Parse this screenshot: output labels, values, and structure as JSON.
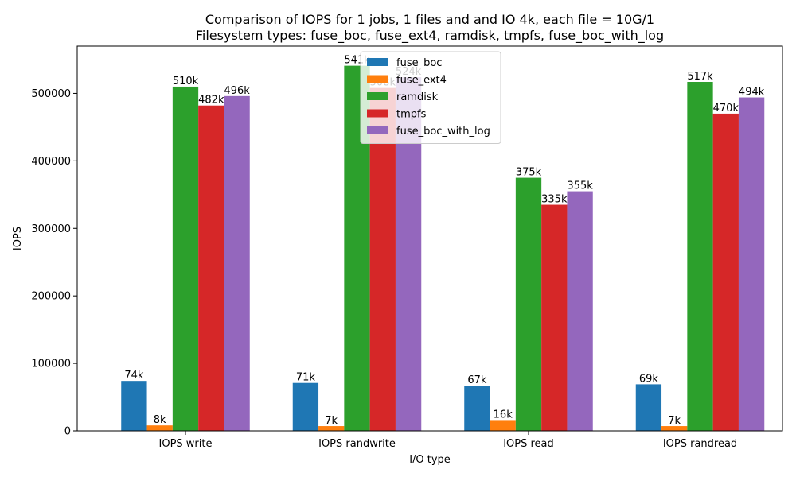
{
  "chart_data": {
    "type": "bar",
    "title": "Comparison of IOPS for 1 jobs, 1 files and  and IO 4k, each file = 10G/1",
    "subtitle": "Filesystem types: fuse_boc, fuse_ext4, ramdisk, tmpfs, fuse_boc_with_log",
    "xlabel": "I/O type",
    "ylabel": "IOPS",
    "categories": [
      "IOPS write",
      "IOPS randwrite",
      "IOPS read",
      "IOPS randread"
    ],
    "ylim": [
      0,
      570000
    ],
    "yticks": [
      "0",
      "100000",
      "200000",
      "300000",
      "400000",
      "500000"
    ],
    "ytick_values": [
      0,
      100000,
      200000,
      300000,
      400000,
      500000
    ],
    "legend_position": "top-center",
    "grid": false,
    "series": [
      {
        "name": "fuse_boc",
        "color": "#1f77b4",
        "values": [
          74000,
          71000,
          67000,
          69000
        ],
        "labels": [
          "74k",
          "71k",
          "67k",
          "69k"
        ]
      },
      {
        "name": "fuse_ext4",
        "color": "#ff7f0e",
        "values": [
          8000,
          7000,
          16000,
          7000
        ],
        "labels": [
          "8k",
          "7k",
          "16k",
          "7k"
        ]
      },
      {
        "name": "ramdisk",
        "color": "#2ca02c",
        "values": [
          510000,
          541000,
          375000,
          517000
        ],
        "labels": [
          "510k",
          "541k",
          "375k",
          "517k"
        ]
      },
      {
        "name": "tmpfs",
        "color": "#d62728",
        "values": [
          482000,
          508000,
          335000,
          470000
        ],
        "labels": [
          "482k",
          "508k",
          "335k",
          "470k"
        ]
      },
      {
        "name": "fuse_boc_with_log",
        "color": "#9467bd",
        "values": [
          496000,
          524000,
          355000,
          494000
        ],
        "labels": [
          "496k",
          "524k",
          "355k",
          "494k"
        ]
      }
    ]
  }
}
